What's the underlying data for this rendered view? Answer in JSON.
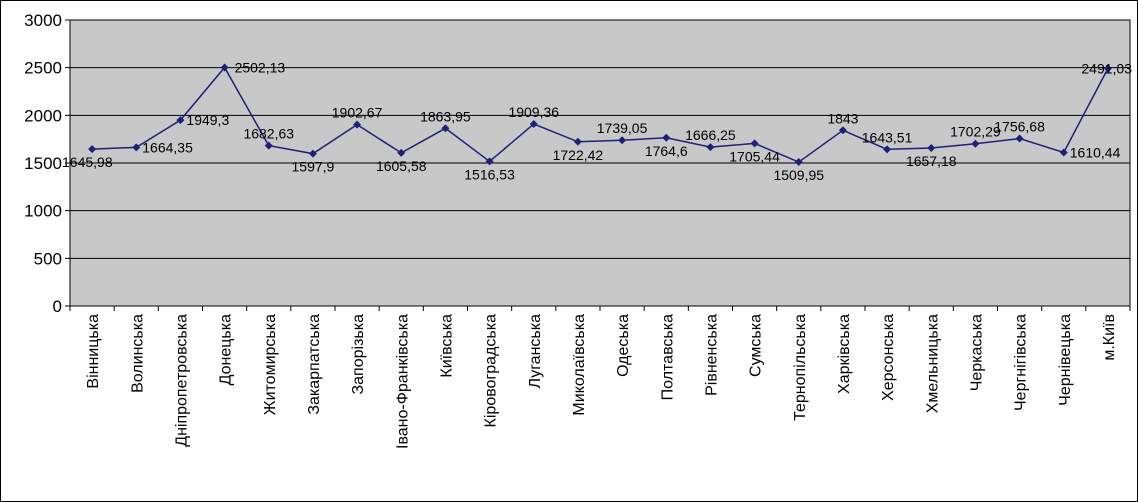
{
  "chart_data": {
    "type": "line",
    "title": "",
    "xlabel": "",
    "ylabel": "",
    "ylim": [
      0,
      3000
    ],
    "yticks": [
      "0",
      "500",
      "1000",
      "1500",
      "2000",
      "2500",
      "3000"
    ],
    "grid": true,
    "legend": "none",
    "colors": {
      "line": "#1f1f7a",
      "marker": "#1f1f7a",
      "plot_bg": "#c8c8c8",
      "grid": "#000000",
      "border": "#000000"
    },
    "categories": [
      "Вінницька",
      "Волинська",
      "Дніпропетровська",
      "Донецька",
      "Житомирська",
      "Закарпатська",
      "Запорізька",
      "Івано-Франківська",
      "Київська",
      "Кіровоградська",
      "Луганська",
      "Миколаївська",
      "Одеська",
      "Полтавська",
      "Рівненська",
      "Сумська",
      "Тернопільська",
      "Харківська",
      "Херсонська",
      "Хмельницька",
      "Черкаська",
      "Чергнігівська",
      "Чернівецька",
      "м.Київ"
    ],
    "series": [
      {
        "values": [
          1645.98,
          1664.35,
          1949.3,
          2502.13,
          1682.63,
          1597.9,
          1902.67,
          1605.58,
          1863.95,
          1516.53,
          1909.36,
          1722.42,
          1739.05,
          1764.6,
          1666.25,
          1705.44,
          1509.95,
          1843,
          1643.51,
          1657.18,
          1702.29,
          1756.68,
          1610.44,
          2491.03
        ],
        "labels": [
          "1645,98",
          "1664,35",
          "1949,3",
          "2502,13",
          "1682,63",
          "1597,9",
          "1902,67",
          "1605,58",
          "1863,95",
          "1516,53",
          "1909,36",
          "1722,42",
          "1739,05",
          "1764,6",
          "1666,25",
          "1705,44",
          "1509,95",
          "1843",
          "1643,51",
          "1657,18",
          "1702,29",
          "1756,68",
          "1610,44",
          "2491,03"
        ]
      }
    ]
  }
}
